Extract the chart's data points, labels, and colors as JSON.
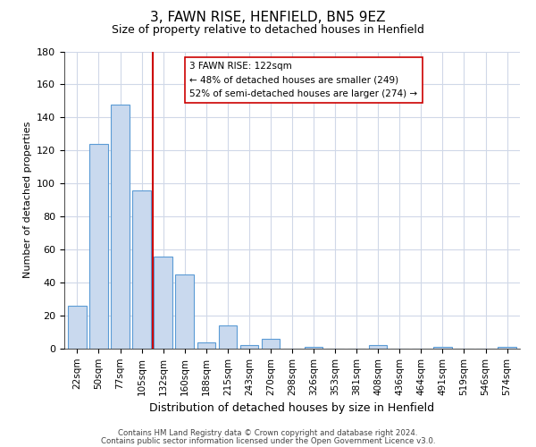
{
  "title": "3, FAWN RISE, HENFIELD, BN5 9EZ",
  "subtitle": "Size of property relative to detached houses in Henfield",
  "xlabel": "Distribution of detached houses by size in Henfield",
  "ylabel": "Number of detached properties",
  "bar_labels": [
    "22sqm",
    "50sqm",
    "77sqm",
    "105sqm",
    "132sqm",
    "160sqm",
    "188sqm",
    "215sqm",
    "243sqm",
    "270sqm",
    "298sqm",
    "326sqm",
    "353sqm",
    "381sqm",
    "408sqm",
    "436sqm",
    "464sqm",
    "491sqm",
    "519sqm",
    "546sqm",
    "574sqm"
  ],
  "bar_heights": [
    26,
    124,
    148,
    96,
    56,
    45,
    4,
    14,
    2,
    6,
    0,
    1,
    0,
    0,
    2,
    0,
    0,
    1,
    0,
    0,
    1
  ],
  "bar_color": "#c9d9ee",
  "bar_edge_color": "#5b9bd5",
  "vline_x": 3.5,
  "vline_color": "#cc0000",
  "annotation_lines": [
    "3 FAWN RISE: 122sqm",
    "← 48% of detached houses are smaller (249)",
    "52% of semi-detached houses are larger (274) →"
  ],
  "ylim": [
    0,
    180
  ],
  "yticks": [
    0,
    20,
    40,
    60,
    80,
    100,
    120,
    140,
    160,
    180
  ],
  "footnote1": "Contains HM Land Registry data © Crown copyright and database right 2024.",
  "footnote2": "Contains public sector information licensed under the Open Government Licence v3.0.",
  "background_color": "#ffffff",
  "grid_color": "#d0d8e8"
}
